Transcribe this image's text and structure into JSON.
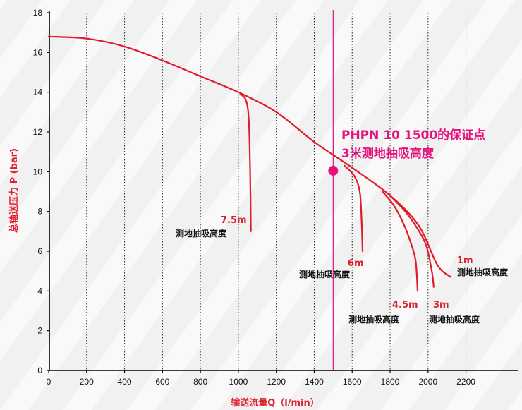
{
  "chart_data": {
    "type": "line",
    "xlabel": "输送流量Q（l/min）",
    "ylabel": "总输送压力 P (bar)",
    "xlim": [
      0,
      2500
    ],
    "ylim": [
      0,
      18
    ],
    "xticks": [
      0,
      200,
      400,
      600,
      800,
      1000,
      1200,
      1400,
      1600,
      1800,
      2000,
      2200
    ],
    "yticks": [
      0,
      2,
      4,
      6,
      8,
      10,
      12,
      14,
      16,
      18
    ],
    "grid": "vertical dotted",
    "series": [
      {
        "name": "1m",
        "x": [
          0,
          200,
          400,
          600,
          800,
          1000,
          1200,
          1400,
          1600,
          1800,
          1950,
          2050,
          2120
        ],
        "y": [
          16.8,
          16.7,
          16.3,
          15.6,
          14.8,
          14.0,
          13.0,
          11.5,
          10.2,
          8.8,
          7.3,
          5.3,
          4.7
        ]
      },
      {
        "name": "3m",
        "x": [
          1800,
          1880,
          1940,
          1990,
          2020,
          2030
        ],
        "y": [
          8.8,
          8.0,
          7.2,
          6.3,
          5.0,
          4.2
        ]
      },
      {
        "name": "4.5m",
        "x": [
          1760,
          1820,
          1870,
          1910,
          1935,
          1945
        ],
        "y": [
          9.0,
          8.3,
          7.4,
          6.4,
          5.5,
          4.0
        ]
      },
      {
        "name": "6m",
        "x": [
          1560,
          1610,
          1640,
          1650,
          1655
        ],
        "y": [
          10.3,
          9.8,
          9.0,
          7.5,
          6.0
        ]
      },
      {
        "name": "7.5m",
        "x": [
          1010,
          1040,
          1055,
          1062,
          1066
        ],
        "y": [
          13.9,
          13.6,
          12.6,
          10.0,
          7.0
        ]
      }
    ],
    "reference_line_x": 1500,
    "guarantee_point": {
      "x": 1500,
      "y": 10.05
    },
    "annotations": {
      "callout_line1": "PHPN 10 1500的保证点",
      "callout_line2": "3米测地抽吸高度",
      "suction_label": "测地抽吸高度",
      "labels": [
        "7.5m",
        "6m",
        "4.5m",
        "3m",
        "1m"
      ]
    },
    "colors": {
      "curve": "#e01c2a",
      "reference": "#e5127e",
      "label": "#d8202c"
    }
  }
}
